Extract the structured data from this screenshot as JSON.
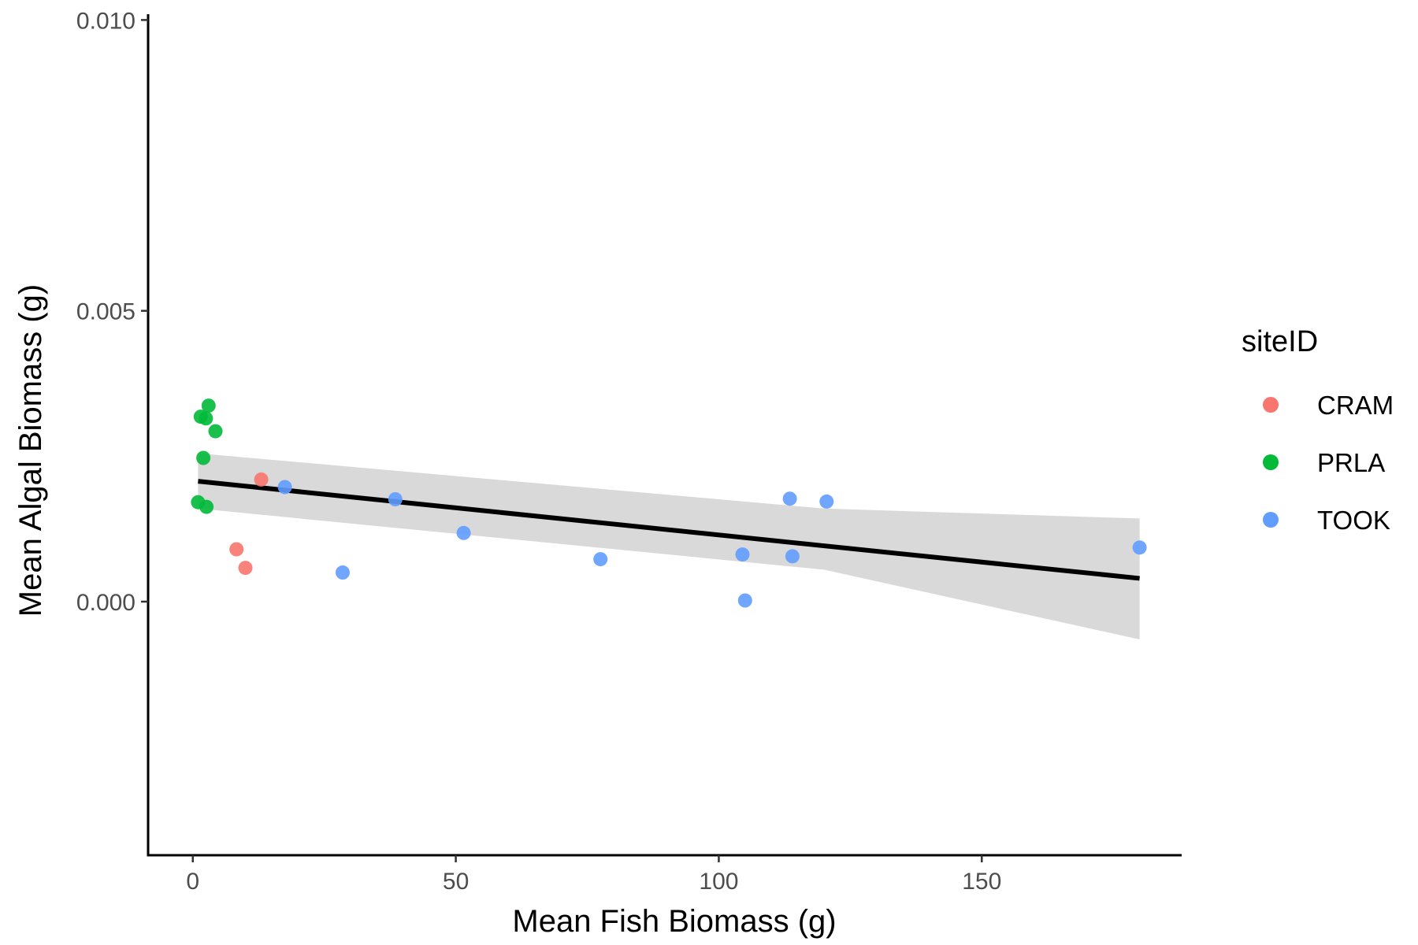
{
  "chart_data": {
    "type": "scatter",
    "xlabel": "Mean Fish Biomass (g)",
    "ylabel": "Mean Algal Biomass (g)",
    "xlim": [
      -8.5,
      188
    ],
    "ylim": [
      -0.00436,
      0.0101
    ],
    "x_ticks": [
      0,
      50,
      100,
      150
    ],
    "x_tick_labels": [
      "0",
      "50",
      "100",
      "150"
    ],
    "y_ticks": [
      0.0,
      0.005,
      0.01
    ],
    "y_tick_labels": [
      "0.000",
      "0.005",
      "0.010"
    ],
    "grid": false,
    "legend": {
      "title": "siteID",
      "position": "right",
      "entries": [
        {
          "label": "CRAM",
          "color": "#F8766D"
        },
        {
          "label": "PRLA",
          "color": "#00BA38"
        },
        {
          "label": "TOOK",
          "color": "#619CFF"
        }
      ]
    },
    "series": [
      {
        "name": "CRAM",
        "color": "#F8766D",
        "points": [
          [
            13,
            0.0021
          ],
          [
            8.3,
            0.0009
          ],
          [
            10,
            0.00058
          ]
        ]
      },
      {
        "name": "PRLA",
        "color": "#00BA38",
        "points": [
          [
            3,
            0.00337
          ],
          [
            1.5,
            0.00318
          ],
          [
            2.5,
            0.00315
          ],
          [
            4.3,
            0.00293
          ],
          [
            2,
            0.00247
          ],
          [
            1,
            0.00171
          ],
          [
            2.6,
            0.00163
          ]
        ]
      },
      {
        "name": "TOOK",
        "color": "#619CFF",
        "points": [
          [
            17.5,
            0.00197
          ],
          [
            38.5,
            0.00176
          ],
          [
            51.5,
            0.00118
          ],
          [
            28.5,
            0.0005
          ],
          [
            77.5,
            0.00073
          ],
          [
            104.5,
            0.00081
          ],
          [
            105,
            2e-05
          ],
          [
            113.5,
            0.00177
          ],
          [
            114,
            0.00078
          ],
          [
            120.5,
            0.00172
          ],
          [
            180,
            0.00093
          ]
        ]
      }
    ],
    "fit": {
      "method": "linear",
      "color": "#000000",
      "x": [
        1,
        180
      ],
      "y": [
        0.00207,
        0.0004
      ],
      "ci_lower": [
        0.0016,
        -0.00065
      ],
      "ci_upper": [
        0.00255,
        0.00143
      ],
      "ci_mid_x": 120,
      "ci_mid_lower": [
        0.00055
      ],
      "ci_mid_upper": [
        0.0016
      ],
      "ci_color": "#D9D9D9"
    }
  }
}
